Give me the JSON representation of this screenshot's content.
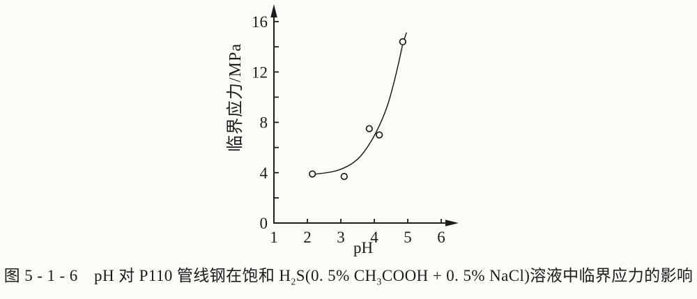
{
  "figure": {
    "caption": {
      "part1": "图 5 - 1 - 6　pH 对 P110 管线钢在饱和 H",
      "sub1": "2",
      "part2": "S(0. 5% CH",
      "sub2": "3",
      "part3": "COOH + 0. 5% NaCl)溶液中临界应力的影响"
    }
  },
  "chart_data": {
    "type": "scatter",
    "title": "",
    "xlabel": "pH",
    "ylabel": "临界应力/MPa",
    "xlim": [
      1,
      6.5
    ],
    "ylim": [
      0,
      17.3
    ],
    "x_ticks": [
      1,
      2,
      3,
      4,
      5,
      6
    ],
    "y_ticks_major": [
      0,
      4,
      8,
      12,
      16
    ],
    "y_ticks_minor": [
      2,
      6,
      10,
      14
    ],
    "grid": false,
    "legend": "none",
    "marker": "open-circle",
    "points": [
      [
        2.15,
        3.9
      ],
      [
        3.1,
        3.7
      ],
      [
        3.85,
        7.5
      ],
      [
        4.15,
        7.0
      ],
      [
        4.85,
        14.4
      ]
    ],
    "trend_curve": [
      [
        2.17,
        3.87
      ],
      [
        2.6,
        3.98
      ],
      [
        3.02,
        4.25
      ],
      [
        3.44,
        4.86
      ],
      [
        3.75,
        5.8
      ],
      [
        4.06,
        7.18
      ],
      [
        4.38,
        9.12
      ],
      [
        4.58,
        11.05
      ],
      [
        4.73,
        12.7
      ],
      [
        4.85,
        14.25
      ],
      [
        4.96,
        15.1
      ]
    ],
    "ink_color": "#1c1c1c",
    "paper_color": "#fbfbf8"
  }
}
